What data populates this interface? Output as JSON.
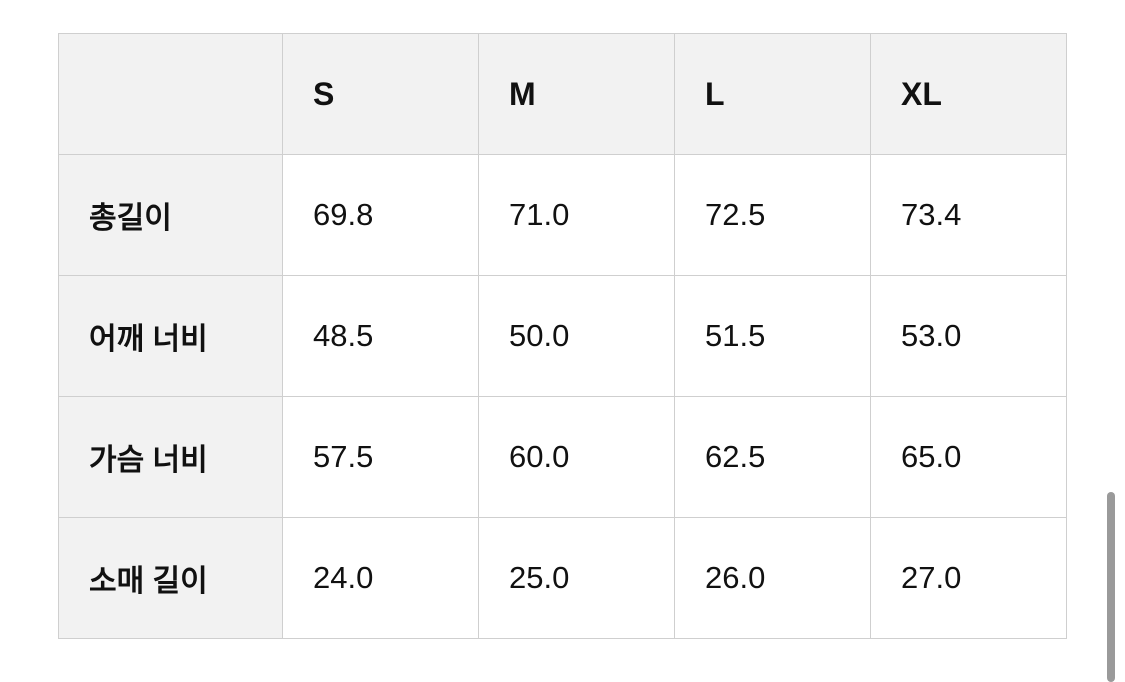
{
  "table": {
    "columns": [
      "S",
      "M",
      "L",
      "XL"
    ],
    "rows": [
      {
        "label": "총길이",
        "values": [
          "69.8",
          "71.0",
          "72.5",
          "73.4"
        ]
      },
      {
        "label": "어깨 너비",
        "values": [
          "48.5",
          "50.0",
          "51.5",
          "53.0"
        ]
      },
      {
        "label": "가슴 너비",
        "values": [
          "57.5",
          "60.0",
          "62.5",
          "65.0"
        ]
      },
      {
        "label": "소매 길이",
        "values": [
          "24.0",
          "25.0",
          "26.0",
          "27.0"
        ]
      }
    ]
  }
}
